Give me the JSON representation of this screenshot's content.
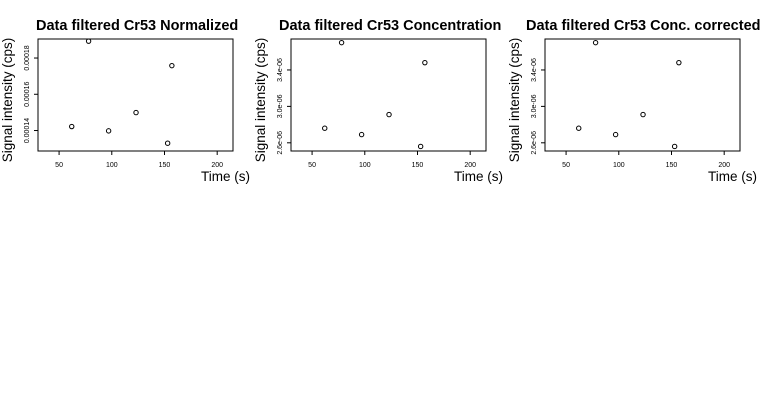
{
  "chart_data": [
    {
      "type": "scatter",
      "title": "Data filtered Cr53 Normalized",
      "xlabel": "Time (s)",
      "ylabel": "Signal intensity (cps)",
      "xlim": [
        30,
        215
      ],
      "ylim": [
        0.0001287,
        0.0001905
      ],
      "xticks": [
        50,
        100,
        150,
        200
      ],
      "xtick_labels": [
        "50",
        "100",
        "150",
        "200"
      ],
      "yticks": [
        0.00014,
        0.00016,
        0.00018
      ],
      "ytick_labels": [
        "0.00014",
        "0.00016",
        "0.00018"
      ],
      "x": [
        62,
        78,
        97,
        123,
        153,
        157
      ],
      "y": [
        0.0001422,
        0.0001893,
        0.0001398,
        0.0001499,
        0.000133,
        0.0001758
      ],
      "grid": false
    },
    {
      "type": "scatter",
      "title": "Data filtered Cr53 Concentration",
      "xlabel": "Time (s)",
      "ylabel": "Signal intensity (cps)",
      "xlim": [
        30,
        215
      ],
      "ylim": [
        2.51e-06,
        3.74e-06
      ],
      "xticks": [
        50,
        100,
        150,
        200
      ],
      "xtick_labels": [
        "50",
        "100",
        "150",
        "200"
      ],
      "yticks": [
        2.6e-06,
        3e-06,
        3.4e-06
      ],
      "ytick_labels": [
        "2.6e-06",
        "3.0e-06",
        "3.4e-06"
      ],
      "x": [
        62,
        78,
        97,
        123,
        153,
        157
      ],
      "y": [
        2.76e-06,
        3.7e-06,
        2.69e-06,
        2.91e-06,
        2.56e-06,
        3.48e-06
      ],
      "grid": false
    },
    {
      "type": "scatter",
      "title": "Data filtered Cr53 Conc. corrected",
      "xlabel": "Time (s)",
      "ylabel": "Signal intensity (cps)",
      "xlim": [
        30,
        215
      ],
      "ylim": [
        2.51e-06,
        3.74e-06
      ],
      "xticks": [
        50,
        100,
        150,
        200
      ],
      "xtick_labels": [
        "50",
        "100",
        "150",
        "200"
      ],
      "yticks": [
        2.6e-06,
        3e-06,
        3.4e-06
      ],
      "ytick_labels": [
        "2.6e-06",
        "3.0e-06",
        "3.4e-06"
      ],
      "x": [
        62,
        78,
        97,
        123,
        153,
        157
      ],
      "y": [
        2.76e-06,
        3.7e-06,
        2.69e-06,
        2.91e-06,
        2.56e-06,
        3.48e-06
      ],
      "grid": false
    }
  ]
}
